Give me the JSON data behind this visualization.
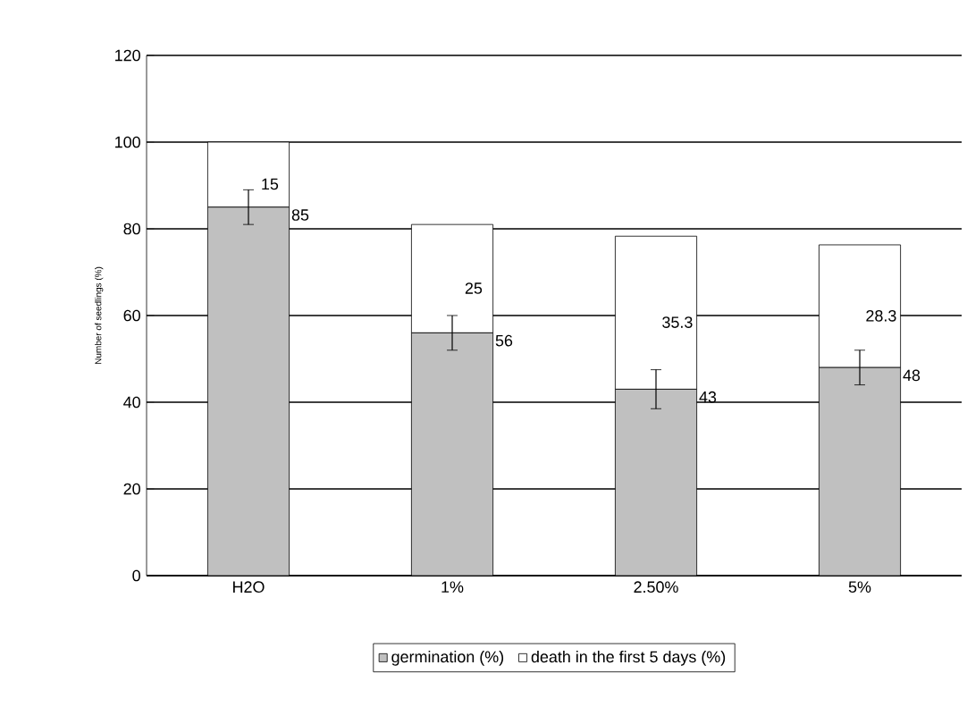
{
  "chart_data": {
    "type": "bar",
    "stacked": true,
    "ylabel": "Number of seedlings (%)",
    "categories": [
      "H2O",
      "1%",
      "2.50%",
      "5%"
    ],
    "series": [
      {
        "name": "germination (%)",
        "color": "#c0c0c0",
        "values": [
          85,
          56,
          43,
          48
        ],
        "errors": [
          4,
          4,
          4.5,
          4
        ]
      },
      {
        "name": "death in the first 5 days (%)",
        "color": "#ffffff",
        "values": [
          15,
          25,
          35.3,
          28.3
        ]
      }
    ],
    "ylim": [
      0,
      120
    ],
    "yticks": [
      0,
      20,
      40,
      60,
      80,
      100,
      120
    ],
    "grid": "y",
    "legend": "bottom",
    "data_labels": true
  }
}
